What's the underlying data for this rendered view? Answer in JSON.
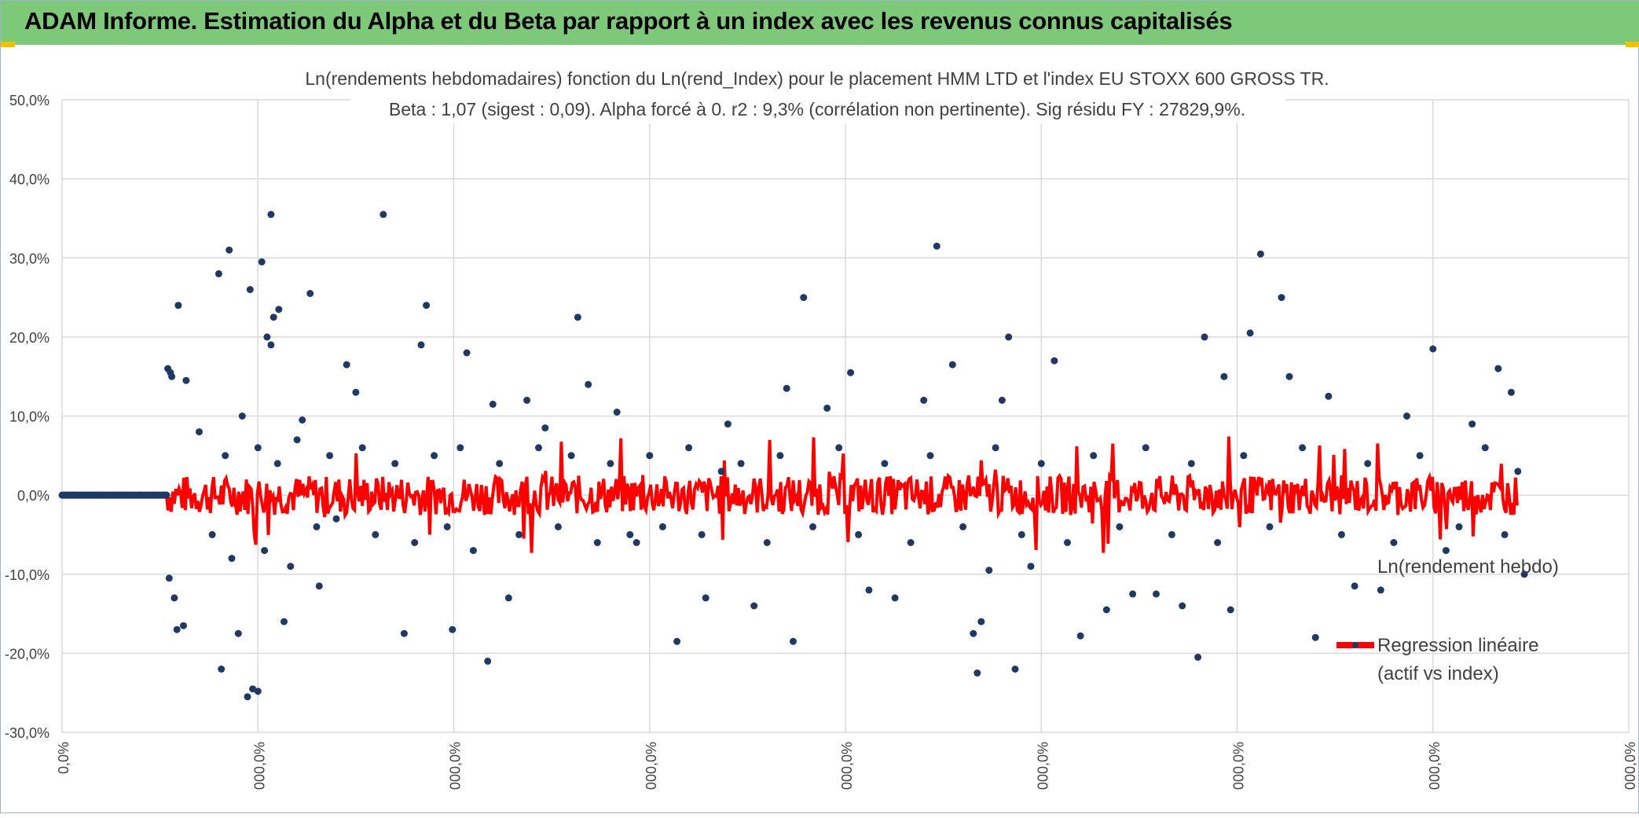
{
  "header": {
    "title": "ADAM Informe. Estimation du Alpha et du Beta par rapport à un index avec les revenus connus capitalisés",
    "bar_color": "#7ec87a"
  },
  "chart_data": {
    "type": "scatter",
    "title": "Ln(rendements hebdomadaires) fonction du Ln(rend_Index) pour le placement HMM LTD et l'index EU STOXX 600 GROSS TR.",
    "subtitle": "Beta : 1,07 (sigest : 0,09). Alpha forcé à 0. r2 : 9,3% (corrélation non pertinente). Sig résidu FY : 27829,9%.",
    "xlabel": "",
    "ylabel": "",
    "ylim": [
      -0.3,
      0.5
    ],
    "y_ticks": [
      "-30,0%",
      "-20,0%",
      "-10,0%",
      "0,0%",
      "10,0%",
      "20,0%",
      "30,0%",
      "40,0%",
      "50,0%"
    ],
    "x_ticks": [
      "0,0%",
      "000,0%",
      "000,0%",
      "000,0%",
      "000,0%",
      "000,0%",
      "000,0%",
      "000,0%",
      "000,0%"
    ],
    "grid": true,
    "legend_position": "right",
    "series": [
      {
        "name": "Ln(rendement hebdo)",
        "color": "#1f3864",
        "marker": "circle",
        "points": [
          [
            0.1,
            0.0
          ],
          [
            0.2,
            0.0
          ],
          [
            0.3,
            0.0
          ],
          [
            0.4,
            0.0
          ],
          [
            0.5,
            0.0
          ],
          [
            0.6,
            0.0
          ],
          [
            0.7,
            0.0
          ],
          [
            0.8,
            0.0
          ],
          [
            0.81,
            0.16
          ],
          [
            0.82,
            -0.105
          ],
          [
            0.83,
            0.155
          ],
          [
            0.84,
            0.15
          ],
          [
            0.86,
            -0.13
          ],
          [
            0.88,
            -0.17
          ],
          [
            0.89,
            0.24
          ],
          [
            0.93,
            -0.165
          ],
          [
            0.95,
            0.145
          ],
          [
            1.2,
            0.28
          ],
          [
            1.22,
            -0.22
          ],
          [
            1.28,
            0.31
          ],
          [
            1.35,
            -0.175
          ],
          [
            1.44,
            0.26
          ],
          [
            1.42,
            -0.255
          ],
          [
            1.46,
            -0.245
          ],
          [
            1.5,
            -0.248
          ],
          [
            1.53,
            0.295
          ],
          [
            1.57,
            0.2
          ],
          [
            1.6,
            0.19
          ],
          [
            1.62,
            0.225
          ],
          [
            1.66,
            0.235
          ],
          [
            1.6,
            0.355
          ],
          [
            1.7,
            -0.16
          ],
          [
            1.9,
            0.255
          ],
          [
            1.84,
            0.095
          ],
          [
            1.97,
            -0.115
          ],
          [
            2.18,
            0.165
          ],
          [
            2.25,
            0.13
          ],
          [
            2.46,
            0.355
          ],
          [
            2.62,
            -0.175
          ],
          [
            2.75,
            0.19
          ],
          [
            2.79,
            0.24
          ],
          [
            2.99,
            -0.17
          ],
          [
            3.1,
            0.18
          ],
          [
            3.26,
            -0.21
          ],
          [
            3.3,
            0.115
          ],
          [
            3.42,
            -0.13
          ],
          [
            3.56,
            0.12
          ],
          [
            3.7,
            0.085
          ],
          [
            3.95,
            0.225
          ],
          [
            4.03,
            0.14
          ],
          [
            4.25,
            0.105
          ],
          [
            4.4,
            -0.06
          ],
          [
            4.71,
            -0.185
          ],
          [
            4.93,
            -0.13
          ],
          [
            5.05,
            0.03
          ],
          [
            5.1,
            0.09
          ],
          [
            5.3,
            -0.14
          ],
          [
            5.55,
            0.135
          ],
          [
            5.6,
            -0.185
          ],
          [
            5.68,
            0.25
          ],
          [
            5.86,
            0.11
          ],
          [
            6.04,
            0.155
          ],
          [
            6.18,
            -0.12
          ],
          [
            6.38,
            -0.13
          ],
          [
            6.6,
            0.12
          ],
          [
            6.7,
            0.315
          ],
          [
            6.82,
            0.165
          ],
          [
            6.98,
            -0.175
          ],
          [
            7.01,
            -0.225
          ],
          [
            7.04,
            -0.16
          ],
          [
            7.1,
            -0.095
          ],
          [
            7.2,
            0.12
          ],
          [
            7.3,
            -0.22
          ],
          [
            7.25,
            0.2
          ],
          [
            7.42,
            -0.09
          ],
          [
            7.6,
            0.17
          ],
          [
            7.8,
            -0.178
          ],
          [
            8.0,
            -0.145
          ],
          [
            8.2,
            -0.125
          ],
          [
            8.38,
            -0.125
          ],
          [
            8.58,
            -0.14
          ],
          [
            8.7,
            -0.205
          ],
          [
            8.75,
            0.2
          ],
          [
            8.9,
            0.15
          ],
          [
            8.95,
            -0.145
          ],
          [
            9.1,
            0.205
          ],
          [
            9.18,
            0.305
          ],
          [
            9.34,
            0.25
          ],
          [
            9.4,
            0.15
          ],
          [
            9.6,
            -0.18
          ],
          [
            9.7,
            0.125
          ],
          [
            9.9,
            -0.115
          ],
          [
            10.1,
            -0.12
          ],
          [
            10.3,
            0.1
          ],
          [
            10.5,
            0.185
          ],
          [
            10.6,
            -0.07
          ],
          [
            10.8,
            0.09
          ],
          [
            11.0,
            0.16
          ],
          [
            11.1,
            0.13
          ],
          [
            11.2,
            -0.1
          ],
          [
            1.05,
            0.08
          ],
          [
            1.15,
            -0.05
          ],
          [
            1.25,
            0.05
          ],
          [
            1.3,
            -0.08
          ],
          [
            1.38,
            0.1
          ],
          [
            1.5,
            0.06
          ],
          [
            1.55,
            -0.07
          ],
          [
            1.65,
            0.04
          ],
          [
            1.75,
            -0.09
          ],
          [
            1.8,
            0.07
          ],
          [
            1.95,
            -0.04
          ],
          [
            2.05,
            0.05
          ],
          [
            2.1,
            -0.03
          ],
          [
            2.3,
            0.06
          ],
          [
            2.4,
            -0.05
          ],
          [
            2.55,
            0.04
          ],
          [
            2.7,
            -0.06
          ],
          [
            2.85,
            0.05
          ],
          [
            2.95,
            -0.04
          ],
          [
            3.05,
            0.06
          ],
          [
            3.15,
            -0.07
          ],
          [
            3.35,
            0.04
          ],
          [
            3.5,
            -0.05
          ],
          [
            3.65,
            0.06
          ],
          [
            3.8,
            -0.04
          ],
          [
            3.9,
            0.05
          ],
          [
            4.1,
            -0.06
          ],
          [
            4.2,
            0.04
          ],
          [
            4.35,
            -0.05
          ],
          [
            4.5,
            0.05
          ],
          [
            4.6,
            -0.04
          ],
          [
            4.8,
            0.06
          ],
          [
            4.9,
            -0.05
          ],
          [
            5.2,
            0.04
          ],
          [
            5.4,
            -0.06
          ],
          [
            5.5,
            0.05
          ],
          [
            5.75,
            -0.04
          ],
          [
            5.95,
            0.06
          ],
          [
            6.1,
            -0.05
          ],
          [
            6.3,
            0.04
          ],
          [
            6.5,
            -0.06
          ],
          [
            6.65,
            0.05
          ],
          [
            6.9,
            -0.04
          ],
          [
            7.15,
            0.06
          ],
          [
            7.35,
            -0.05
          ],
          [
            7.5,
            0.04
          ],
          [
            7.7,
            -0.06
          ],
          [
            7.9,
            0.05
          ],
          [
            8.1,
            -0.04
          ],
          [
            8.3,
            0.06
          ],
          [
            8.5,
            -0.05
          ],
          [
            8.65,
            0.04
          ],
          [
            8.85,
            -0.06
          ],
          [
            9.05,
            0.05
          ],
          [
            9.25,
            -0.04
          ],
          [
            9.5,
            0.06
          ],
          [
            9.8,
            -0.05
          ],
          [
            10.0,
            0.04
          ],
          [
            10.2,
            -0.06
          ],
          [
            10.4,
            0.05
          ],
          [
            10.7,
            -0.04
          ],
          [
            10.9,
            0.06
          ],
          [
            11.05,
            -0.05
          ],
          [
            11.15,
            0.03
          ]
        ]
      },
      {
        "name": "Regression linéaire (actif vs index)",
        "color": "#ff0000",
        "line": true
      }
    ]
  }
}
